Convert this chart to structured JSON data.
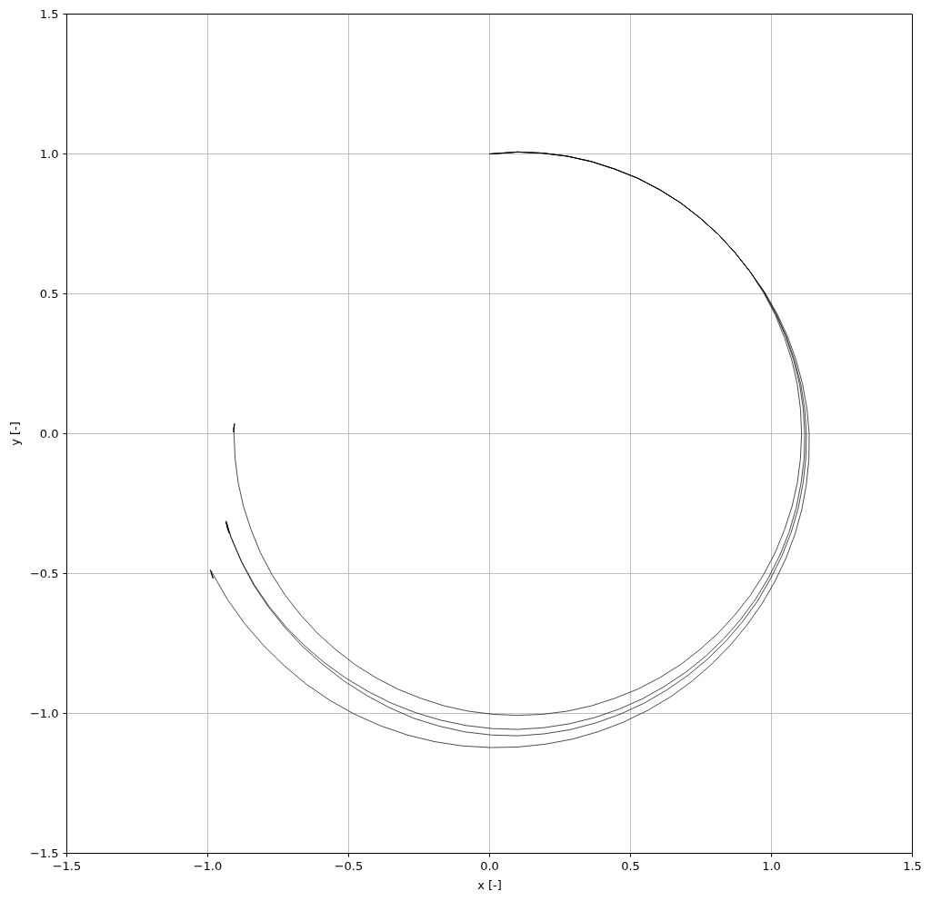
{
  "chart_data": {
    "type": "line",
    "xlabel": "x [-]",
    "ylabel": "y [-]",
    "xlim": [
      -1.5,
      1.5
    ],
    "ylim": [
      -1.5,
      1.5
    ],
    "xticks": [
      {
        "value": -1.5,
        "label": "−1.5"
      },
      {
        "value": -1.0,
        "label": "−1.0"
      },
      {
        "value": -0.5,
        "label": "−0.5"
      },
      {
        "value": 0.0,
        "label": "0.0"
      },
      0.5,
      {
        "value": 1.0,
        "label": "1.0"
      },
      1.5
    ],
    "yticks": [
      {
        "value": -1.5,
        "label": "−1.5"
      },
      {
        "value": -1.0,
        "label": "−1.0"
      },
      {
        "value": -0.5,
        "label": "−0.5"
      },
      {
        "value": 0.0,
        "label": "0.0"
      },
      0.5,
      {
        "value": 1.0,
        "label": "1.0"
      },
      1.5
    ],
    "grid": true,
    "series": [
      {
        "color": "#000000",
        "x": [
          0.0,
          0.1,
          0.188,
          0.275,
          0.361,
          0.444,
          0.526,
          0.604,
          0.678,
          0.747,
          0.812,
          0.871,
          0.925,
          0.972,
          1.013,
          1.046,
          1.073,
          1.092,
          1.103,
          1.107,
          1.103,
          1.092,
          1.073,
          1.046,
          1.013,
          0.972,
          0.925,
          0.871,
          0.812,
          0.747,
          0.678,
          0.604,
          0.526,
          0.444,
          0.361,
          0.275,
          0.188,
          0.1,
          0.012,
          -0.075,
          -0.161,
          -0.244,
          -0.326,
          -0.404,
          -0.478,
          -0.547,
          -0.612,
          -0.671,
          -0.725,
          -0.772,
          -0.813,
          -0.846,
          -0.873,
          -0.892,
          -0.903,
          -0.907,
          -0.906,
          -0.909,
          -0.905,
          -0.908,
          -0.906
        ],
        "values": [
          1.0,
          1.007,
          1.003,
          0.992,
          0.973,
          0.946,
          0.913,
          0.872,
          0.825,
          0.771,
          0.712,
          0.647,
          0.578,
          0.504,
          0.426,
          0.344,
          0.261,
          0.175,
          0.088,
          0.0,
          -0.088,
          -0.175,
          -0.261,
          -0.344,
          -0.426,
          -0.504,
          -0.578,
          -0.647,
          -0.712,
          -0.771,
          -0.825,
          -0.872,
          -0.913,
          -0.946,
          -0.973,
          -0.992,
          -1.003,
          -1.007,
          -1.003,
          -0.992,
          -0.973,
          -0.946,
          -0.913,
          -0.872,
          -0.825,
          -0.771,
          -0.712,
          -0.647,
          -0.578,
          -0.504,
          -0.426,
          -0.344,
          -0.261,
          -0.175,
          -0.088,
          0.0,
          0.035,
          0.005,
          0.036,
          0.015,
          0.032
        ]
      },
      {
        "color": "#000000",
        "x": [
          0.0,
          0.1,
          0.188,
          0.275,
          0.361,
          0.444,
          0.526,
          0.604,
          0.678,
          0.747,
          0.812,
          0.871,
          0.925,
          0.974,
          1.016,
          1.051,
          1.079,
          1.1,
          1.113,
          1.118,
          1.116,
          1.105,
          1.088,
          1.063,
          1.03,
          0.99,
          0.944,
          0.891,
          0.832,
          0.767,
          0.697,
          0.621,
          0.542,
          0.458,
          0.372,
          0.283,
          0.192,
          0.1,
          0.008,
          -0.084,
          -0.174,
          -0.263,
          -0.349,
          -0.432,
          -0.511,
          -0.587,
          -0.657,
          -0.723,
          -0.782,
          -0.835,
          -0.88,
          -0.917,
          -0.935,
          -0.928,
          -0.935,
          -0.926
        ],
        "values": [
          1.0,
          1.007,
          1.003,
          0.992,
          0.973,
          0.946,
          0.913,
          0.872,
          0.825,
          0.771,
          0.712,
          0.647,
          0.578,
          0.505,
          0.427,
          0.346,
          0.262,
          0.176,
          0.089,
          0.0,
          -0.089,
          -0.177,
          -0.265,
          -0.351,
          -0.434,
          -0.514,
          -0.591,
          -0.664,
          -0.732,
          -0.795,
          -0.852,
          -0.903,
          -0.948,
          -0.985,
          -1.015,
          -1.037,
          -1.051,
          -1.057,
          -1.054,
          -1.043,
          -1.024,
          -0.997,
          -0.963,
          -0.921,
          -0.873,
          -0.818,
          -0.757,
          -0.69,
          -0.618,
          -0.54,
          -0.457,
          -0.37,
          -0.316,
          -0.345,
          -0.312,
          -0.352
        ]
      },
      {
        "color": "#000000",
        "x": [
          0.0,
          0.1,
          0.188,
          0.275,
          0.361,
          0.444,
          0.526,
          0.604,
          0.678,
          0.747,
          0.812,
          0.871,
          0.925,
          0.975,
          1.017,
          1.053,
          1.082,
          1.104,
          1.118,
          1.124,
          1.122,
          1.112,
          1.095,
          1.07,
          1.037,
          0.997,
          0.952,
          0.899,
          0.84,
          0.775,
          0.705,
          0.629,
          0.549,
          0.465,
          0.377,
          0.286,
          0.194,
          0.1,
          0.006,
          -0.088,
          -0.18,
          -0.27,
          -0.356,
          -0.439,
          -0.518,
          -0.592,
          -0.662,
          -0.726,
          -0.785,
          -0.837,
          -0.881,
          -0.918,
          -0.935,
          -0.924,
          -0.933,
          -0.927
        ],
        "values": [
          1.0,
          1.007,
          1.003,
          0.992,
          0.973,
          0.946,
          0.913,
          0.872,
          0.825,
          0.771,
          0.712,
          0.647,
          0.578,
          0.505,
          0.428,
          0.347,
          0.263,
          0.177,
          0.089,
          0.0,
          -0.089,
          -0.178,
          -0.267,
          -0.353,
          -0.437,
          -0.518,
          -0.596,
          -0.67,
          -0.74,
          -0.804,
          -0.863,
          -0.916,
          -0.963,
          -1.002,
          -1.034,
          -1.058,
          -1.073,
          -1.08,
          -1.077,
          -1.066,
          -1.045,
          -1.017,
          -0.979,
          -0.934,
          -0.883,
          -0.825,
          -0.762,
          -0.693,
          -0.619,
          -0.541,
          -0.457,
          -0.37,
          -0.316,
          -0.356,
          -0.318,
          -0.34
        ]
      },
      {
        "color": "#000000",
        "x": [
          0.0,
          0.1,
          0.188,
          0.275,
          0.361,
          0.444,
          0.526,
          0.604,
          0.678,
          0.747,
          0.812,
          0.871,
          0.925,
          0.976,
          1.02,
          1.057,
          1.087,
          1.11,
          1.126,
          1.134,
          1.133,
          1.124,
          1.108,
          1.084,
          1.052,
          1.013,
          0.967,
          0.914,
          0.855,
          0.79,
          0.719,
          0.643,
          0.561,
          0.475,
          0.386,
          0.293,
          0.197,
          0.1,
          0.002,
          -0.097,
          -0.195,
          -0.292,
          -0.387,
          -0.479,
          -0.567,
          -0.651,
          -0.729,
          -0.802,
          -0.869,
          -0.929,
          -0.991,
          -0.981,
          -0.989,
          -0.982
        ],
        "values": [
          1.0,
          1.007,
          1.003,
          0.992,
          0.973,
          0.946,
          0.913,
          0.872,
          0.825,
          0.771,
          0.712,
          0.647,
          0.578,
          0.506,
          0.429,
          0.348,
          0.265,
          0.178,
          0.09,
          0.0,
          -0.09,
          -0.181,
          -0.27,
          -0.358,
          -0.444,
          -0.527,
          -0.607,
          -0.683,
          -0.755,
          -0.822,
          -0.884,
          -0.94,
          -0.989,
          -1.031,
          -1.065,
          -1.092,
          -1.11,
          -1.12,
          -1.122,
          -1.116,
          -1.101,
          -1.077,
          -1.044,
          -1.003,
          -0.953,
          -0.895,
          -0.829,
          -0.757,
          -0.679,
          -0.594,
          -0.486,
          -0.518,
          -0.492,
          -0.514
        ]
      }
    ]
  }
}
